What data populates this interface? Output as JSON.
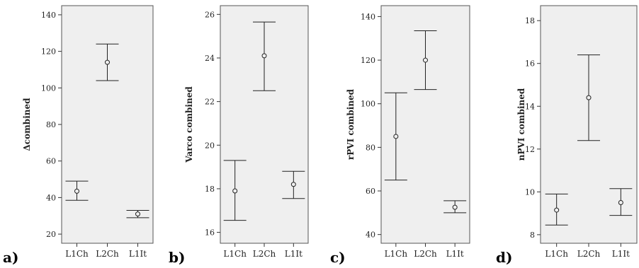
{
  "chart_data": [
    {
      "type": "errorbar",
      "panel_label": "a)",
      "ylabel": "Δcombined",
      "categories": [
        "L1Ch",
        "L2Ch",
        "L1It"
      ],
      "series": [
        {
          "mean": [
            43.5,
            114,
            31
          ],
          "lower": [
            38.5,
            104,
            29
          ],
          "upper": [
            49,
            124,
            33
          ]
        }
      ],
      "yticks": [
        20,
        40,
        60,
        80,
        100,
        120,
        140
      ],
      "ylim": [
        15,
        145
      ],
      "grid": false
    },
    {
      "type": "errorbar",
      "panel_label": "b)",
      "ylabel": "Varco combined",
      "categories": [
        "L1Ch",
        "L2Ch",
        "L1It"
      ],
      "series": [
        {
          "mean": [
            17.9,
            24.1,
            18.2
          ],
          "lower": [
            16.55,
            22.5,
            17.55
          ],
          "upper": [
            19.3,
            25.65,
            18.8
          ]
        }
      ],
      "yticks": [
        16,
        18,
        20,
        22,
        24,
        26
      ],
      "ylim": [
        15.5,
        26.4
      ],
      "grid": false
    },
    {
      "type": "errorbar",
      "panel_label": "c)",
      "ylabel": "rPVI combined",
      "categories": [
        "L1Ch",
        "L2Ch",
        "L1It"
      ],
      "series": [
        {
          "mean": [
            85,
            120,
            52.5
          ],
          "lower": [
            65,
            106.5,
            50
          ],
          "upper": [
            105,
            133.5,
            55.5
          ]
        }
      ],
      "yticks": [
        40,
        60,
        80,
        100,
        120,
        140
      ],
      "ylim": [
        36,
        145
      ],
      "grid": false
    },
    {
      "type": "errorbar",
      "panel_label": "d)",
      "ylabel": "nPVI combined",
      "categories": [
        "L1Ch",
        "L2Ch",
        "L1It"
      ],
      "series": [
        {
          "mean": [
            9.15,
            14.4,
            9.5
          ],
          "lower": [
            8.45,
            12.4,
            8.9
          ],
          "upper": [
            9.9,
            16.4,
            10.15
          ]
        }
      ],
      "yticks": [
        8,
        10,
        12,
        14,
        16,
        18
      ],
      "ylim": [
        7.6,
        18.7
      ],
      "grid": false
    }
  ],
  "colors": {
    "plot_background": "#efefef",
    "plot_border": "#555555",
    "marks": "#222222"
  }
}
